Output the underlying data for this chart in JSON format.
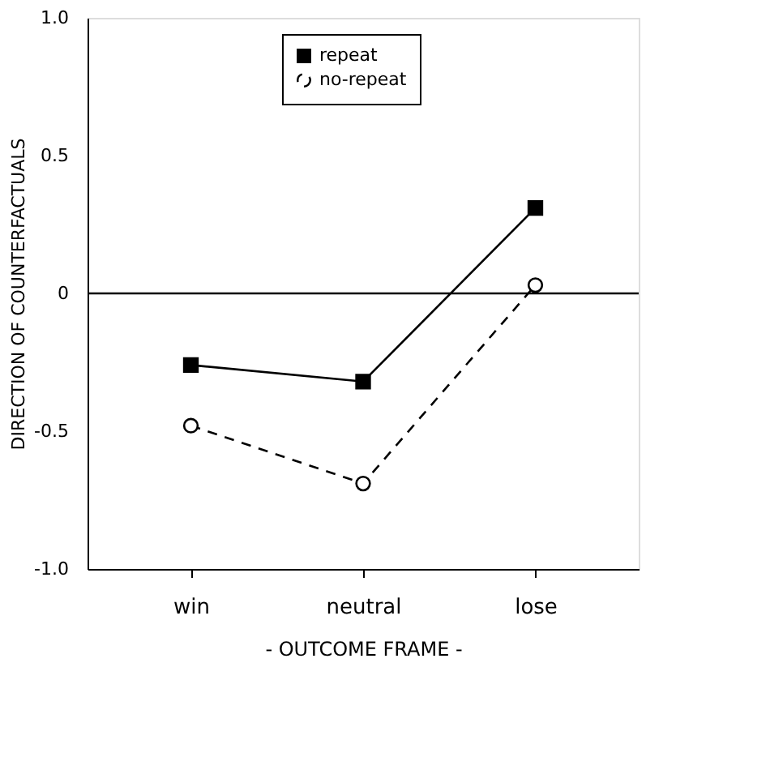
{
  "chart_data": {
    "type": "line",
    "xlabel": "- OUTCOME FRAME -",
    "ylabel": "DIRECTION OF COUNTERFACTUALS",
    "categories": [
      "win",
      "neutral",
      "lose"
    ],
    "series": [
      {
        "name": "repeat",
        "color": "#000000",
        "values": [
          -0.26,
          -0.32,
          0.31
        ],
        "marker": "square",
        "line_style": "solid"
      },
      {
        "name": "no-repeat",
        "color": "#000000",
        "values": [
          -0.48,
          -0.69,
          0.03
        ],
        "marker": "circle",
        "line_style": "dashed"
      }
    ],
    "ylim": [
      -1.0,
      1.0
    ],
    "yticks": [
      {
        "value": -1.0,
        "label": "-1.0"
      },
      {
        "value": -0.5,
        "label": "-0.5"
      },
      0,
      {
        "value": 0.5,
        "label": "0.5"
      },
      {
        "value": 1.0,
        "label": "1.0"
      }
    ],
    "ref_lines": [
      {
        "axis": "y",
        "value": 0,
        "color": "#000000",
        "line_style": "solid"
      }
    ],
    "grid": false,
    "legend": "top"
  }
}
